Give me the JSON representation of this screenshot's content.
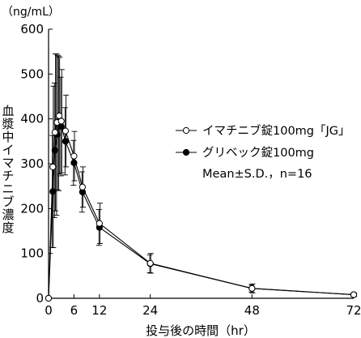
{
  "chart_data": {
    "type": "line",
    "title": "",
    "xlabel": "投与後の時間（hr）",
    "ylabel": "血漿中イマチニブ濃度",
    "yunit": "（ng/mL）",
    "xlim": [
      0,
      72
    ],
    "ylim": [
      0,
      600
    ],
    "xticks": [
      0,
      6,
      12,
      24,
      48,
      72
    ],
    "yticks": [
      0,
      100,
      200,
      300,
      400,
      500,
      600
    ],
    "grid": false,
    "legend_position": "right",
    "legend_note": "Mean±S.D.，n=16",
    "series": [
      {
        "name": "イマチニブ錠100mg「JG」",
        "marker": "open-circle",
        "points": [
          {
            "x": 0,
            "y": 0
          },
          {
            "x": 1,
            "y": 293,
            "sd": 180
          },
          {
            "x": 1.5,
            "y": 370,
            "sd": 175
          },
          {
            "x": 2,
            "y": 392,
            "sd": 150
          },
          {
            "x": 2.5,
            "y": 407,
            "sd": 130
          },
          {
            "x": 3,
            "y": 395,
            "sd": 115
          },
          {
            "x": 4,
            "y": 373,
            "sd": 80
          },
          {
            "x": 6,
            "y": 317,
            "sd": 55
          },
          {
            "x": 8,
            "y": 248,
            "sd": 45
          },
          {
            "x": 12,
            "y": 167,
            "sd": 45
          },
          {
            "x": 24,
            "y": 78,
            "sd": 22
          },
          {
            "x": 48,
            "y": 22,
            "sd": 10
          },
          {
            "x": 72,
            "y": 8,
            "sd": 4
          }
        ]
      },
      {
        "name": "グリベック錠100mg",
        "marker": "filled-circle",
        "points": [
          {
            "x": 0,
            "y": 0
          },
          {
            "x": 1,
            "y": 238,
            "sd": 125
          },
          {
            "x": 1.5,
            "y": 330,
            "sd": 150
          },
          {
            "x": 2,
            "y": 365,
            "sd": 180
          },
          {
            "x": 2.5,
            "y": 390,
            "sd": 150
          },
          {
            "x": 3,
            "y": 383,
            "sd": 110
          },
          {
            "x": 4,
            "y": 350,
            "sd": 75
          },
          {
            "x": 6,
            "y": 302,
            "sd": 50
          },
          {
            "x": 8,
            "y": 237,
            "sd": 45
          },
          {
            "x": 12,
            "y": 158,
            "sd": 40
          },
          {
            "x": 24,
            "y": 77,
            "sd": 20
          },
          {
            "x": 48,
            "y": 22,
            "sd": 8
          },
          {
            "x": 72,
            "y": 8,
            "sd": 3
          }
        ]
      }
    ]
  }
}
